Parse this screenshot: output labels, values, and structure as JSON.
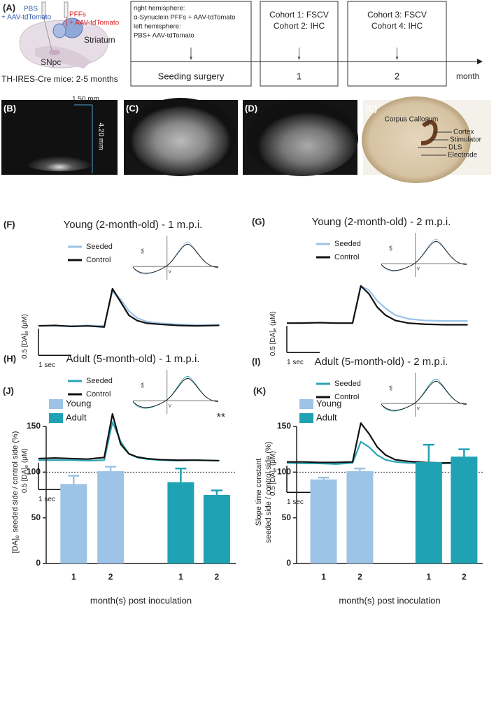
{
  "panel_a": {
    "label": "(A)",
    "pbs": "PBS",
    "pbs_virus": "+ AAV-tdTomato",
    "pffs": "PFFs",
    "pffs_virus": "+ AAV-tdTomato",
    "striatum": "Striatum",
    "snpc": "SNpc",
    "mice": "TH-IRES-Cre mice: 2-5 months",
    "timeline": [
      {
        "lines": [
          "right hemisphere:",
          "α-Synuclein PFFs + AAV-tdTomato",
          "left hemisphere:",
          "PBS+ AAV-tdTomato"
        ],
        "stage": "Seeding surgery"
      },
      {
        "lines": [
          "Cohort 1: FSCV",
          "Cohort 2: IHC"
        ],
        "stage": "1"
      },
      {
        "lines": [
          "Cohort 3: FSCV",
          "Cohort 4: IHC"
        ],
        "stage": "2"
      }
    ],
    "axis_label": "month"
  },
  "images": [
    {
      "label": "(B)",
      "scale_x": "1.50 mm",
      "scale_y": "4.20 mm"
    },
    {
      "label": "(C)"
    },
    {
      "label": "(D)"
    },
    {
      "label": "(E)",
      "annotations": [
        "Corpus Callosum",
        "Cortex",
        "Stimulator",
        "DLS",
        "Electrode"
      ]
    }
  ],
  "chart_data": [
    {
      "type": "line",
      "label": "(F)",
      "title": "Young (2-month-old) - 1 m.p.i.",
      "x": [
        0,
        0.5,
        1,
        1.5,
        2,
        2.25,
        2.5,
        2.75,
        3,
        3.3,
        3.7,
        4.2,
        4.8,
        5.5
      ],
      "series": [
        {
          "name": "Seeded",
          "color": "#9dc3e6",
          "values": [
            0.01,
            0,
            0,
            0.01,
            0,
            0.65,
            0.5,
            0.28,
            0.15,
            0.08,
            0.05,
            0.03,
            0.02,
            0.02
          ]
        },
        {
          "name": "Control",
          "color": "#111111",
          "values": [
            0,
            0.01,
            -0.01,
            0,
            -0.02,
            0.7,
            0.45,
            0.2,
            0.1,
            0.05,
            0.03,
            0.01,
            0,
            0.01
          ]
        }
      ],
      "xlim": [
        0,
        5.5
      ],
      "ylim": [
        -0.4,
        1.2
      ],
      "scalebar": {
        "x": 1,
        "x_label": "1 sec",
        "y": 0.5,
        "y_label": "0.5 [DA]",
        "y_label_sub": "e",
        "y_label_unit": "(μM)"
      },
      "inset": {
        "y_label": "nA",
        "x_label": "V"
      }
    },
    {
      "type": "line",
      "label": "(G)",
      "title": "Young (2-month-old) - 2 m.p.i.",
      "x": [
        0,
        0.5,
        1,
        1.5,
        2,
        2.25,
        2.5,
        2.75,
        3,
        3.3,
        3.7,
        4.2,
        4.8,
        5.5
      ],
      "series": [
        {
          "name": "Seeded",
          "color": "#9dc3e6",
          "values": [
            0,
            0.01,
            0,
            0,
            0,
            0.7,
            0.62,
            0.42,
            0.28,
            0.15,
            0.08,
            0.05,
            0.04,
            0.04
          ]
        },
        {
          "name": "Control",
          "color": "#111111",
          "values": [
            0,
            0,
            0.01,
            0,
            0,
            0.7,
            0.55,
            0.3,
            0.15,
            0.05,
            0,
            -0.02,
            -0.03,
            -0.03
          ]
        }
      ],
      "xlim": [
        0,
        5.5
      ],
      "ylim": [
        -0.4,
        1.2
      ],
      "scalebar": {
        "x": 1,
        "x_label": "1 sec",
        "y": 0.5,
        "y_label": "0.5 [DA]",
        "y_label_sub": "e",
        "y_label_unit": "(μM)"
      },
      "inset": {
        "y_label": "nA",
        "x_label": "V"
      }
    },
    {
      "type": "line",
      "label": "(H)",
      "title": "Adult (5-month-old) - 1 m.p.i.",
      "x": [
        0,
        0.5,
        1,
        1.5,
        2,
        2.25,
        2.5,
        2.75,
        3,
        3.3,
        3.7,
        4.2,
        4.8,
        5.5
      ],
      "series": [
        {
          "name": "Seeded",
          "color": "#2aa5b5",
          "values": [
            0,
            0,
            0,
            -0.01,
            0,
            0.72,
            0.35,
            0.12,
            0.05,
            0.02,
            0,
            -0.01,
            0,
            -0.01
          ]
        },
        {
          "name": "Control",
          "color": "#111111",
          "values": [
            0.03,
            0.04,
            0.03,
            0.02,
            0.05,
            0.87,
            0.3,
            0.12,
            0.06,
            0.03,
            0.01,
            0,
            0,
            -0.01
          ]
        }
      ],
      "xlim": [
        0,
        5.5
      ],
      "ylim": [
        -0.4,
        1.2
      ],
      "scalebar": {
        "x": 1,
        "x_label": "1 sec",
        "y": 0.5,
        "y_label": "0.5 [DA]",
        "y_label_sub": "e",
        "y_label_unit": "(μM)"
      },
      "inset": {
        "y_label": "nA",
        "x_label": "V"
      }
    },
    {
      "type": "line",
      "label": "(I)",
      "title": "Adult (5-month-old) - 2 m.p.i.",
      "x": [
        0,
        0.5,
        1,
        1.5,
        2,
        2.25,
        2.5,
        2.75,
        3,
        3.3,
        3.7,
        4.2,
        4.8,
        5.5
      ],
      "series": [
        {
          "name": "Seeded",
          "color": "#2aa5b5",
          "values": [
            0,
            -0.01,
            -0.01,
            -0.02,
            0,
            0.4,
            0.3,
            0.15,
            0.06,
            0.02,
            0,
            -0.01,
            -0.01,
            0
          ]
        },
        {
          "name": "Control",
          "color": "#111111",
          "values": [
            0.02,
            0.02,
            0.01,
            0.01,
            0.02,
            0.75,
            0.55,
            0.3,
            0.15,
            0.06,
            0.03,
            0.01,
            0,
            0.01
          ]
        }
      ],
      "xlim": [
        0,
        5.5
      ],
      "ylim": [
        -0.4,
        1.2
      ],
      "scalebar": {
        "x": 1,
        "x_label": "1 sec",
        "y": 0.5,
        "y_label": "0.5 [DA]",
        "y_label_sub": "e",
        "y_label_unit": "(μM)"
      },
      "inset": {
        "y_label": "nA",
        "x_label": "V"
      }
    },
    {
      "type": "bar",
      "label": "(J)",
      "categories": [
        "1",
        "2",
        "1",
        "2"
      ],
      "series": [
        {
          "name": "Young",
          "color": "#9dc3e6",
          "values": [
            87,
            101,
            null,
            null
          ],
          "errors": [
            9,
            5,
            null,
            null
          ]
        },
        {
          "name": "Adult",
          "color": "#1fa2b3",
          "values": [
            null,
            null,
            89,
            75
          ],
          "errors": [
            null,
            null,
            15,
            5
          ]
        }
      ],
      "ylim": [
        0,
        150
      ],
      "yticks": [
        0,
        50,
        100,
        150
      ],
      "reference_line": 100,
      "annotation": "**",
      "xlabel": "month(s) post inoculation",
      "ylabel": "[DA]",
      "ylabel_sub": "e",
      "ylabel_rest": "seeded side / control side (%)"
    },
    {
      "type": "bar",
      "label": "(K)",
      "categories": [
        "1",
        "2",
        "1",
        "2"
      ],
      "series": [
        {
          "name": "Young",
          "color": "#9dc3e6",
          "values": [
            92,
            101,
            null,
            null
          ],
          "errors": [
            2,
            3,
            null,
            null
          ]
        },
        {
          "name": "Adult",
          "color": "#1fa2b3",
          "values": [
            null,
            null,
            111,
            117
          ],
          "errors": [
            null,
            null,
            19,
            8
          ]
        }
      ],
      "ylim": [
        0,
        150
      ],
      "yticks": [
        0,
        50,
        100,
        150
      ],
      "reference_line": 100,
      "xlabel": "month(s) post inoculation",
      "ylabel": "Slope time constant",
      "ylabel_rest": "seeded side / control side (%)"
    }
  ]
}
